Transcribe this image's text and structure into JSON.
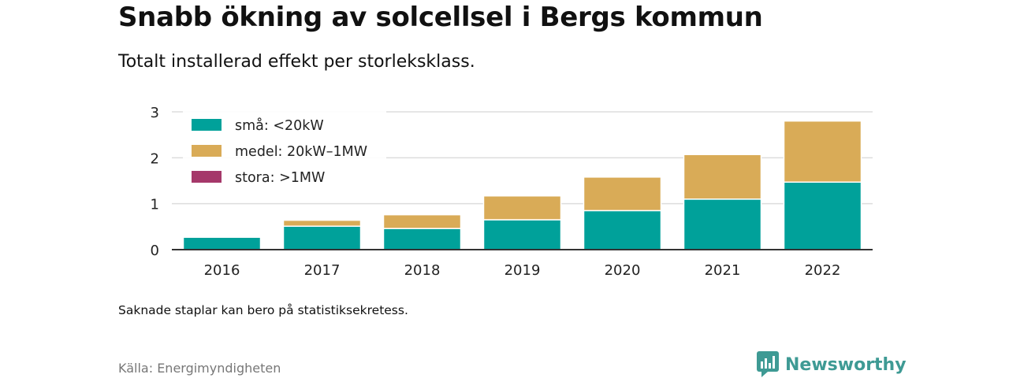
{
  "header": {
    "title": "Snabb ökning av solcellsel i Bergs kommun",
    "subtitle": "Totalt installerad effekt per storleksklass."
  },
  "footer": {
    "note": "Saknade staplar kan bero på statistiksekretess.",
    "source": "Källa: Energimyndigheten",
    "brand": "Newsworthy"
  },
  "colors": {
    "sma": "#00a19a",
    "medel": "#d9ab57",
    "stora": "#a5386a",
    "grid": "#dddddd",
    "axis": "#333333",
    "brand": "#3e9a94"
  },
  "chart_data": {
    "type": "bar",
    "stacked": true,
    "categories": [
      "2016",
      "2017",
      "2018",
      "2019",
      "2020",
      "2021",
      "2022"
    ],
    "series": [
      {
        "name": "små: <20kW",
        "color": "#00a19a",
        "values": [
          0.27,
          0.51,
          0.46,
          0.65,
          0.85,
          1.1,
          1.47
        ]
      },
      {
        "name": "medel: 20kW–1MW",
        "color": "#d9ab57",
        "values": [
          0,
          0.13,
          0.3,
          0.52,
          0.73,
          0.97,
          1.33
        ]
      },
      {
        "name": "stora: >1MW",
        "color": "#a5386a",
        "values": [
          0,
          0,
          0,
          0,
          0,
          0,
          0
        ]
      }
    ],
    "y_ticks": [
      0,
      1,
      2,
      3
    ],
    "ylim": [
      0,
      3
    ],
    "grid": true,
    "legend_position": "top-left"
  }
}
